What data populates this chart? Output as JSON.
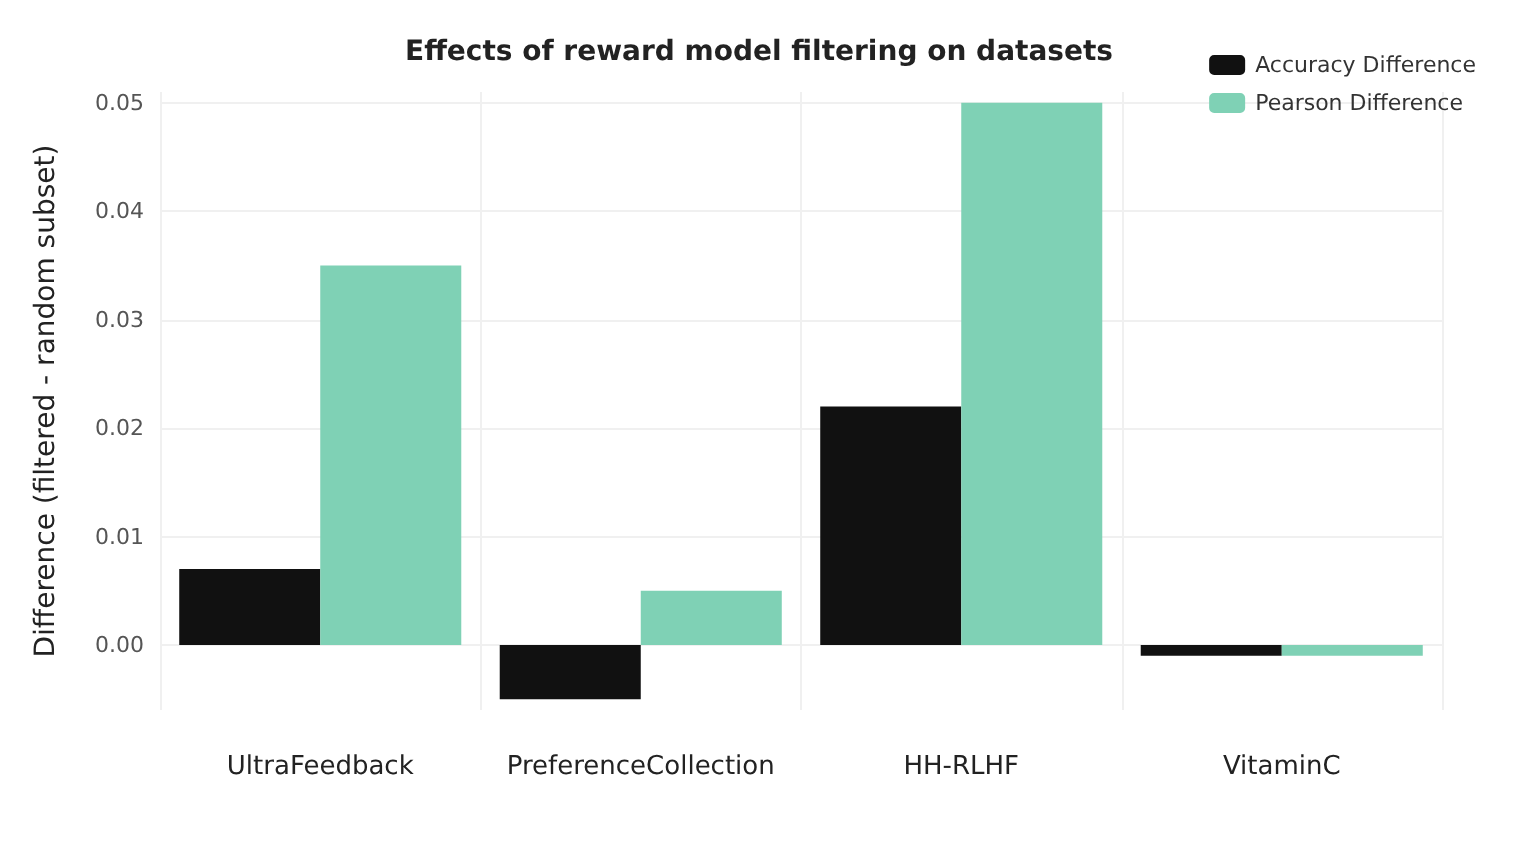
{
  "chart_data": {
    "type": "bar",
    "title": "Effects of reward model filtering on datasets",
    "ylabel": "Difference (filtered - random subset)",
    "categories": [
      "UltraFeedback",
      "PreferenceCollection",
      "HH-RLHF",
      "VitaminC"
    ],
    "series": [
      {
        "name": "Accuracy Difference",
        "color": "#111111",
        "values": [
          0.007,
          -0.005,
          0.022,
          -0.001
        ]
      },
      {
        "name": "Pearson Difference",
        "color": "#7fd1b5",
        "values": [
          0.035,
          0.005,
          0.05,
          -0.001
        ]
      }
    ],
    "ylim": [
      -0.006,
      0.051
    ],
    "yticks": [
      {
        "value": 0,
        "label": "0.00"
      },
      {
        "value": 0.01,
        "label": "0.01"
      },
      {
        "value": 0.02,
        "label": "0.02"
      },
      {
        "value": 0.03,
        "label": "0.03"
      },
      {
        "value": 0.04,
        "label": "0.04"
      },
      {
        "value": 0.05,
        "label": "0.05"
      }
    ],
    "grid": true,
    "legend": "top right"
  }
}
